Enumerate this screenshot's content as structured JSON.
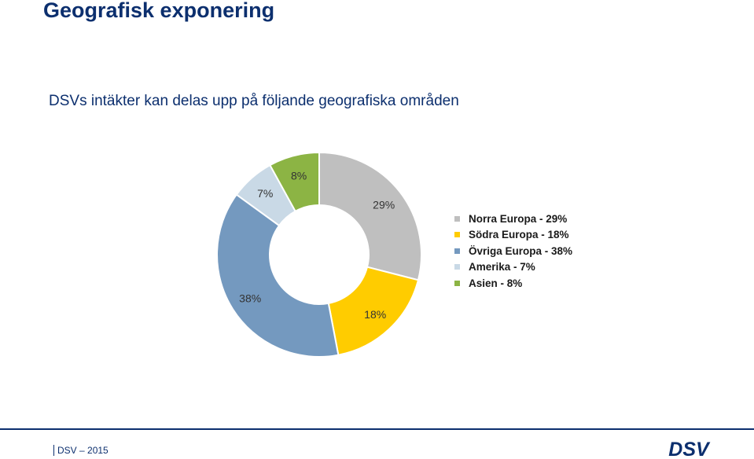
{
  "slide": {
    "title": "Geografisk exponering",
    "subtitle": "DSVs intäkter kan delas upp på följande geografiska områden",
    "footer": "DSV – 2015",
    "logo_text": "DSV",
    "brand_color": "#0c2f6e"
  },
  "chart_data": {
    "type": "pie",
    "donut": true,
    "title": "",
    "legend_position": "right",
    "slices": [
      {
        "label": "Norra Europa - 29%",
        "value": 29,
        "data_label": "29%",
        "color": "#bfbfbf"
      },
      {
        "label": "Södra Europa - 18%",
        "value": 18,
        "data_label": "18%",
        "color": "#ffcc00"
      },
      {
        "label": "Övriga Europa - 38%",
        "value": 38,
        "data_label": "38%",
        "color": "#7499bf"
      },
      {
        "label": "Amerika - 7%",
        "value": 7,
        "data_label": "7%",
        "color": "#c9d9e6"
      },
      {
        "label": "Asien - 8%",
        "value": 8,
        "data_label": "8%",
        "color": "#8cb444"
      }
    ]
  }
}
